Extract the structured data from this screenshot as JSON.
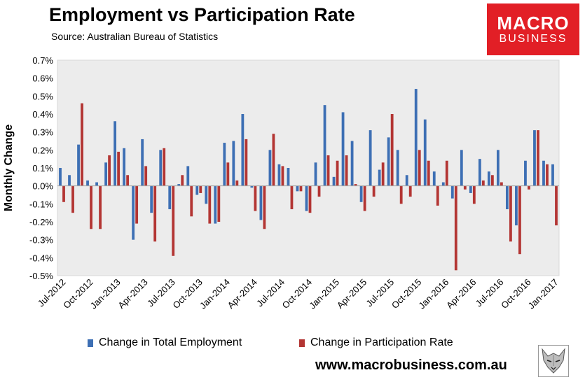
{
  "header": {
    "title": "Employment vs Participation Rate",
    "subtitle": "Source: Australian Bureau of Statistics"
  },
  "logo": {
    "line1": "MACRO",
    "line2": "BUSINESS",
    "color": "#e21f26"
  },
  "footer": {
    "url": "www.macrobusiness.com.au"
  },
  "colors": {
    "employment": "#3d6fb4",
    "participation": "#b33533",
    "plot_bg": "#ececec"
  },
  "chart_data": {
    "type": "bar",
    "ylabel": "Monthly Change",
    "ylim": [
      -0.5,
      0.7
    ],
    "yticks": [
      "-0.5%",
      "-0.4%",
      "-0.3%",
      "-0.2%",
      "-0.1%",
      "0.0%",
      "0.1%",
      "0.2%",
      "0.3%",
      "0.4%",
      "0.5%",
      "0.6%",
      "0.7%"
    ],
    "ytick_values": [
      -0.5,
      -0.4,
      -0.3,
      -0.2,
      -0.1,
      0.0,
      0.1,
      0.2,
      0.3,
      0.4,
      0.5,
      0.6,
      0.7
    ],
    "categories": [
      "Jul-2012",
      "Aug-2012",
      "Sep-2012",
      "Oct-2012",
      "Nov-2012",
      "Dec-2012",
      "Jan-2013",
      "Feb-2013",
      "Mar-2013",
      "Apr-2013",
      "May-2013",
      "Jun-2013",
      "Jul-2013",
      "Aug-2013",
      "Sep-2013",
      "Oct-2013",
      "Nov-2013",
      "Dec-2013",
      "Jan-2014",
      "Feb-2014",
      "Mar-2014",
      "Apr-2014",
      "May-2014",
      "Jun-2014",
      "Jul-2014",
      "Aug-2014",
      "Sep-2014",
      "Oct-2014",
      "Nov-2014",
      "Dec-2014",
      "Jan-2015",
      "Feb-2015",
      "Mar-2015",
      "Apr-2015",
      "May-2015",
      "Jun-2015",
      "Jul-2015",
      "Aug-2015",
      "Sep-2015",
      "Oct-2015",
      "Nov-2015",
      "Dec-2015",
      "Jan-2016",
      "Feb-2016",
      "Mar-2016",
      "Apr-2016",
      "May-2016",
      "Jun-2016",
      "Jul-2016",
      "Aug-2016",
      "Sep-2016",
      "Oct-2016",
      "Nov-2016",
      "Dec-2016",
      "Jan-2017"
    ],
    "xtick_labels": [
      "Jul-2012",
      "Oct-2012",
      "Jan-2013",
      "Apr-2013",
      "Jul-2013",
      "Oct-2013",
      "Jan-2014",
      "Apr-2014",
      "Jul-2014",
      "Oct-2014",
      "Jan-2015",
      "Apr-2015",
      "Jul-2015",
      "Oct-2015",
      "Jan-2016",
      "Apr-2016",
      "Jul-2016",
      "Oct-2016",
      "Jan-2017"
    ],
    "series": [
      {
        "name": "Change in Total Employment",
        "values": [
          0.1,
          0.06,
          0.23,
          0.03,
          0.02,
          0.13,
          0.36,
          0.21,
          -0.3,
          0.26,
          -0.15,
          0.2,
          -0.13,
          0.01,
          0.11,
          -0.05,
          -0.1,
          -0.21,
          0.24,
          0.25,
          0.4,
          -0.01,
          -0.19,
          0.2,
          0.12,
          0.1,
          -0.03,
          -0.14,
          0.13,
          0.45,
          0.05,
          0.41,
          0.25,
          -0.09,
          0.31,
          0.09,
          0.27,
          0.2,
          0.06,
          0.54,
          0.37,
          0.08,
          0.02,
          -0.07,
          0.2,
          -0.04,
          0.15,
          0.08,
          0.2,
          -0.13,
          -0.22,
          0.14,
          0.31,
          0.14,
          0.12
        ]
      },
      {
        "name": "Change in Participation Rate",
        "values": [
          -0.09,
          -0.15,
          0.46,
          -0.24,
          -0.24,
          0.17,
          0.19,
          0.06,
          -0.21,
          0.11,
          -0.31,
          0.21,
          -0.39,
          0.06,
          -0.17,
          -0.04,
          -0.21,
          -0.2,
          0.13,
          0.03,
          0.26,
          -0.14,
          -0.24,
          0.29,
          0.11,
          -0.13,
          -0.03,
          -0.15,
          -0.06,
          0.17,
          0.14,
          0.17,
          0.01,
          -0.14,
          -0.06,
          0.13,
          0.4,
          -0.1,
          -0.06,
          0.2,
          0.14,
          -0.11,
          0.14,
          -0.47,
          -0.02,
          -0.1,
          0.03,
          0.06,
          0.02,
          -0.31,
          -0.38,
          -0.02,
          0.31,
          0.12,
          -0.22
        ]
      }
    ],
    "legend": "bottom"
  }
}
